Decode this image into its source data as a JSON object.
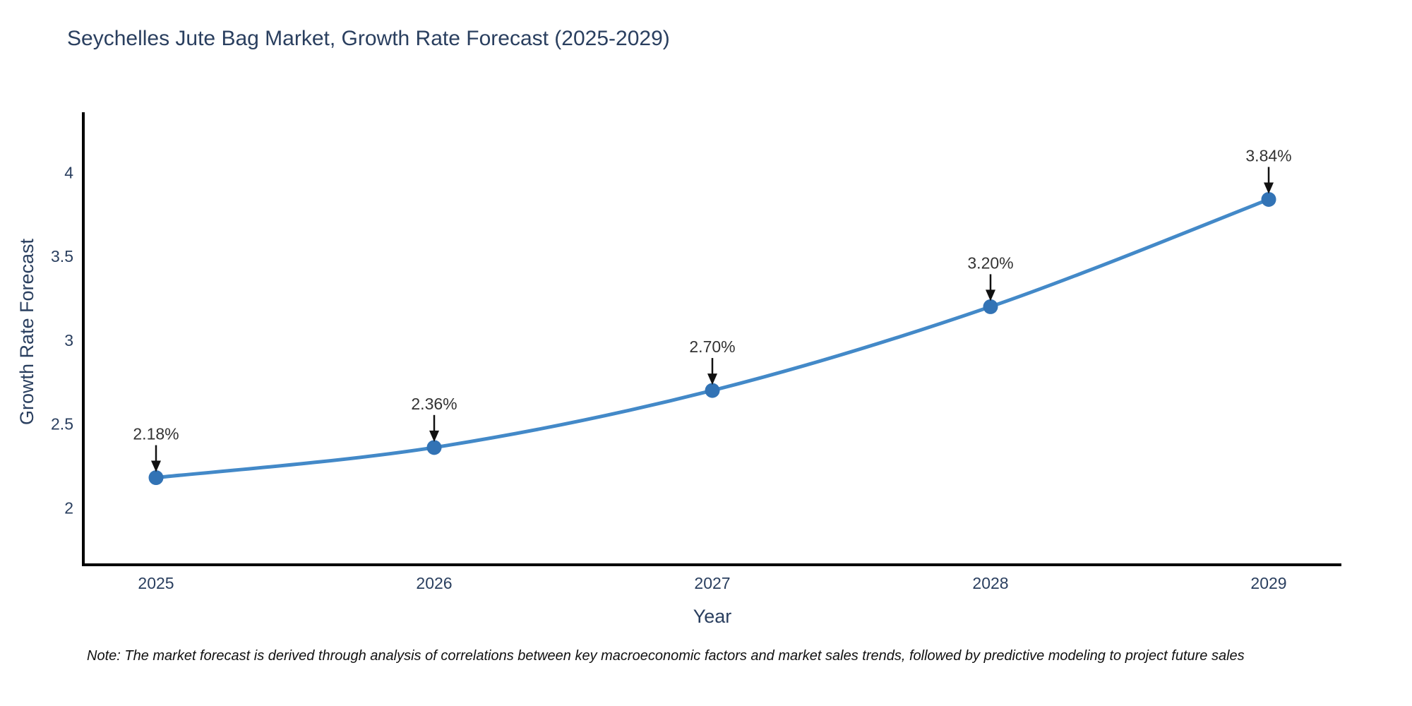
{
  "chart_data": {
    "type": "line",
    "title": "Seychelles Jute Bag Market, Growth Rate Forecast (2025-2029)",
    "xlabel": "Year",
    "ylabel": "Growth Rate Forecast",
    "x": [
      "2025",
      "2026",
      "2027",
      "2028",
      "2029"
    ],
    "values": [
      2.18,
      2.36,
      2.7,
      3.2,
      3.84
    ],
    "point_labels": [
      "2.18%",
      "2.36%",
      "2.70%",
      "3.20%",
      "3.84%"
    ],
    "yticks": [
      {
        "value": 2,
        "label": "2"
      },
      {
        "value": 2.5,
        "label": "2.5"
      },
      {
        "value": 3,
        "label": "3"
      },
      {
        "value": 3.5,
        "label": "3.5"
      },
      {
        "value": 4,
        "label": "4"
      }
    ],
    "ylim": [
      1.66,
      4.36
    ],
    "grid": false,
    "legend": "none",
    "note": "Note: The market forecast is derived through analysis of correlations between key macroeconomic factors and market sales trends, followed by predictive modeling to project future sales",
    "colors": {
      "line": "#4389c8",
      "marker": "#3273b5",
      "axis": "#000000",
      "tick_text": "#2a3f5f",
      "title_text": "#2a3f5f",
      "annotation_text": "#333333",
      "annotation_arrow": "#111111",
      "background": "#ffffff"
    }
  }
}
